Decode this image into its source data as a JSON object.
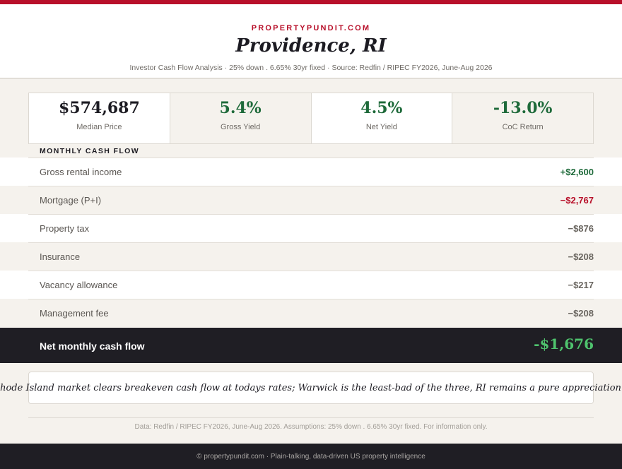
{
  "header": {
    "brand": "PROPERTYPUNDIT.COM",
    "city": "Providence, RI",
    "subtitle": "Investor Cash Flow Analysis · 25% down . 6.65% 30yr fixed · Source: Redfin / RIPEC FY2026, June-Aug 2026"
  },
  "kpis": [
    {
      "value": "$574,687",
      "label": "Median Price"
    },
    {
      "value": "5.4%",
      "label": "Gross Yield"
    },
    {
      "value": "4.5%",
      "label": "Net Yield"
    },
    {
      "value": "-13.0%",
      "label": "CoC Return"
    }
  ],
  "cash_flow": {
    "title": "MONTHLY CASH FLOW",
    "rows": [
      {
        "label": "Gross rental income",
        "value": "+$2,600"
      },
      {
        "label": "Mortgage (P+I)",
        "value": "−$2,767"
      },
      {
        "label": "Property tax",
        "value": "−$876"
      },
      {
        "label": "Insurance",
        "value": "−$208"
      },
      {
        "label": "Vacancy allowance",
        "value": "−$217"
      },
      {
        "label": "Management fee",
        "value": "−$208"
      }
    ],
    "net_label": "Net monthly cash flow",
    "net_value": "-$1,676"
  },
  "verdict": "No Rhode Island market clears breakeven cash flow at todays rates; Warwick is the least-bad of the three, RI remains a pure appreciation play.",
  "footnote": "Data: Redfin / RIPEC FY2026, June-Aug 2026. Assumptions: 25% down . 6.65% 30yr fixed. For information only.",
  "footer": "© propertypundit.com · Plain-talking, data-driven US property intelligence",
  "colors": {
    "accent": "#b8102a",
    "positive": "#1e6a3a",
    "net_positive_text": "#4fc46e",
    "dark_band": "#1f1e24",
    "background": "#f5f2ed"
  }
}
